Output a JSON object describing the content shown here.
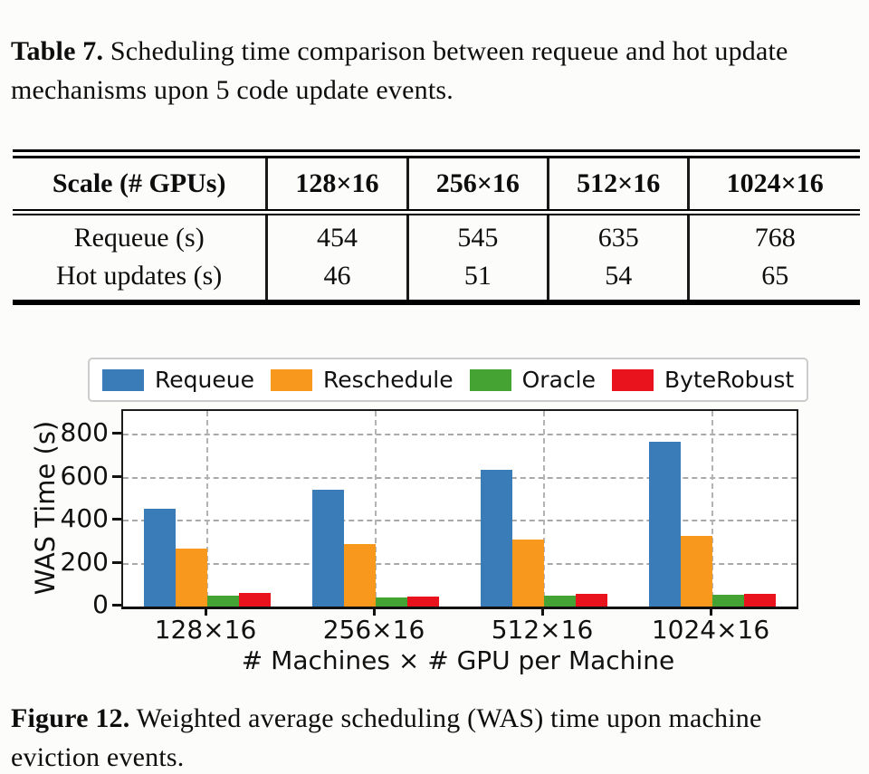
{
  "table": {
    "caption_label": "Table 7.",
    "caption_text": " Scheduling time comparison between requeue and hot update mechanisms upon 5 code update events.",
    "header": [
      "Scale (# GPUs)",
      "128×16",
      "256×16",
      "512×16",
      "1024×16"
    ],
    "rows": [
      {
        "label": "Requeue (s)",
        "values": [
          "454",
          "545",
          "635",
          "768"
        ]
      },
      {
        "label": "Hot updates (s)",
        "values": [
          "46",
          "51",
          "54",
          "65"
        ]
      }
    ]
  },
  "chart_data": {
    "type": "bar",
    "title": "",
    "categories": [
      "128×16",
      "256×16",
      "512×16",
      "1024×16"
    ],
    "series": [
      {
        "name": "Requeue",
        "color": "#3a7cb8",
        "values": [
          454,
          545,
          635,
          768
        ]
      },
      {
        "name": "Reschedule",
        "color": "#f8991d",
        "values": [
          270,
          290,
          310,
          330
        ]
      },
      {
        "name": "Oracle",
        "color": "#44a333",
        "values": [
          52,
          42,
          52,
          54
        ]
      },
      {
        "name": "ByteRobust",
        "color": "#e8131d",
        "values": [
          63,
          47,
          58,
          59
        ]
      }
    ],
    "xlabel": "# Machines × # GPU per Machine",
    "ylabel": "WAS Time (s)",
    "yticks": [
      0,
      200,
      400,
      600,
      800
    ],
    "ylim": [
      0,
      910
    ],
    "grid": true,
    "legend_position": "top"
  },
  "figure": {
    "caption_label": "Figure 12.",
    "caption_text": " Weighted average scheduling (WAS) time upon machine eviction events."
  }
}
